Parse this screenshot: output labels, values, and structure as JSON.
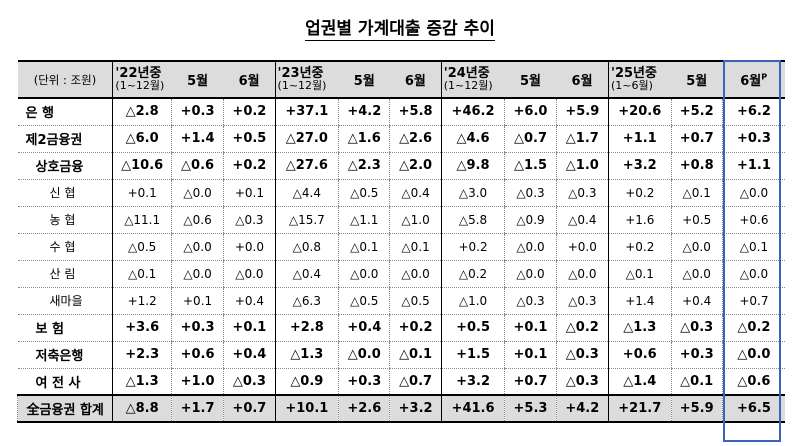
{
  "title": "업권별 가계대출 증감 추이",
  "header": {
    "unit": "(단위 : 조원)",
    "groups": [
      {
        "title": "'22년중",
        "sub": "(1~12월)",
        "m5": "5월",
        "m6": "6월",
        "m6_sup": ""
      },
      {
        "title": "'23년중",
        "sub": "(1~12월)",
        "m5": "5월",
        "m6": "6월",
        "m6_sup": ""
      },
      {
        "title": "'24년중",
        "sub": "(1~12월)",
        "m5": "5월",
        "m6": "6월",
        "m6_sup": ""
      },
      {
        "title": "'25년중",
        "sub": "(1~6월)",
        "m5": "5월",
        "m6": "6월",
        "m6_sup": "P"
      }
    ]
  },
  "rows": [
    {
      "label": "은        행",
      "style": "bold",
      "level": 0,
      "values": [
        "△2.8",
        "+0.3",
        "+0.2",
        "+37.1",
        "+4.2",
        "+5.8",
        "+46.2",
        "+6.0",
        "+5.9",
        "+20.6",
        "+5.2",
        "+6.2"
      ]
    },
    {
      "label": "제2금융권",
      "style": "bold",
      "level": 0,
      "values": [
        "△6.0",
        "+1.4",
        "+0.5",
        "△27.0",
        "△1.6",
        "△2.6",
        "△4.6",
        "△0.7",
        "△1.7",
        "+1.1",
        "+0.7",
        "+0.3"
      ]
    },
    {
      "label": "상호금융",
      "style": "bold",
      "level": 1,
      "values": [
        "△10.6",
        "△0.6",
        "+0.2",
        "△27.6",
        "△2.3",
        "△2.0",
        "△9.8",
        "△1.5",
        "△1.0",
        "+3.2",
        "+0.8",
        "+1.1"
      ]
    },
    {
      "label": "신    협",
      "style": "sub",
      "level": 2,
      "values": [
        "+0.1",
        "△0.0",
        "+0.1",
        "△4.4",
        "△0.5",
        "△0.4",
        "△3.0",
        "△0.3",
        "△0.3",
        "+0.2",
        "△0.1",
        "△0.0"
      ]
    },
    {
      "label": "농    협",
      "style": "sub",
      "level": 2,
      "values": [
        "△11.1",
        "△0.6",
        "△0.3",
        "△15.7",
        "△1.1",
        "△1.0",
        "△5.8",
        "△0.9",
        "△0.4",
        "+1.6",
        "+0.5",
        "+0.6"
      ]
    },
    {
      "label": "수    협",
      "style": "sub",
      "level": 2,
      "values": [
        "△0.5",
        "△0.0",
        "+0.0",
        "△0.8",
        "△0.1",
        "△0.1",
        "+0.2",
        "△0.0",
        "+0.0",
        "+0.2",
        "△0.0",
        "△0.1"
      ]
    },
    {
      "label": "산    림",
      "style": "sub",
      "level": 2,
      "values": [
        "△0.1",
        "△0.0",
        "△0.0",
        "△0.4",
        "△0.0",
        "△0.0",
        "△0.2",
        "△0.0",
        "△0.0",
        "△0.1",
        "△0.0",
        "△0.0"
      ]
    },
    {
      "label": "새마을",
      "style": "sub",
      "level": 2,
      "values": [
        "+1.2",
        "+0.1",
        "+0.4",
        "△6.3",
        "△0.5",
        "△0.5",
        "△1.0",
        "△0.3",
        "△0.3",
        "+1.4",
        "+0.4",
        "+0.7"
      ]
    },
    {
      "label": "보    험",
      "style": "bold",
      "level": 1,
      "values": [
        "+3.6",
        "+0.3",
        "+0.1",
        "+2.8",
        "+0.4",
        "+0.2",
        "+0.5",
        "+0.1",
        "△0.2",
        "△1.3",
        "△0.3",
        "△0.2"
      ]
    },
    {
      "label": "저축은행",
      "style": "bold",
      "level": 1,
      "values": [
        "+2.3",
        "+0.6",
        "+0.4",
        "△1.3",
        "△0.0",
        "△0.1",
        "+1.5",
        "+0.1",
        "△0.3",
        "+0.6",
        "+0.3",
        "△0.0"
      ]
    },
    {
      "label": "여 전 사",
      "style": "bold",
      "level": 1,
      "values": [
        "△1.3",
        "+1.0",
        "△0.3",
        "△0.9",
        "+0.3",
        "△0.7",
        "+3.2",
        "+0.7",
        "△0.3",
        "△1.4",
        "△0.1",
        "△0.6"
      ]
    }
  ],
  "total": {
    "label": "全금융권 합계",
    "values": [
      "△8.8",
      "+1.7",
      "+0.7",
      "+10.1",
      "+2.6",
      "+3.2",
      "+41.6",
      "+5.3",
      "+4.2",
      "+21.7",
      "+5.9",
      "+6.5"
    ]
  },
  "colors": {
    "header_bg": "#dcdcdc",
    "highlight": "#3b63b8"
  }
}
